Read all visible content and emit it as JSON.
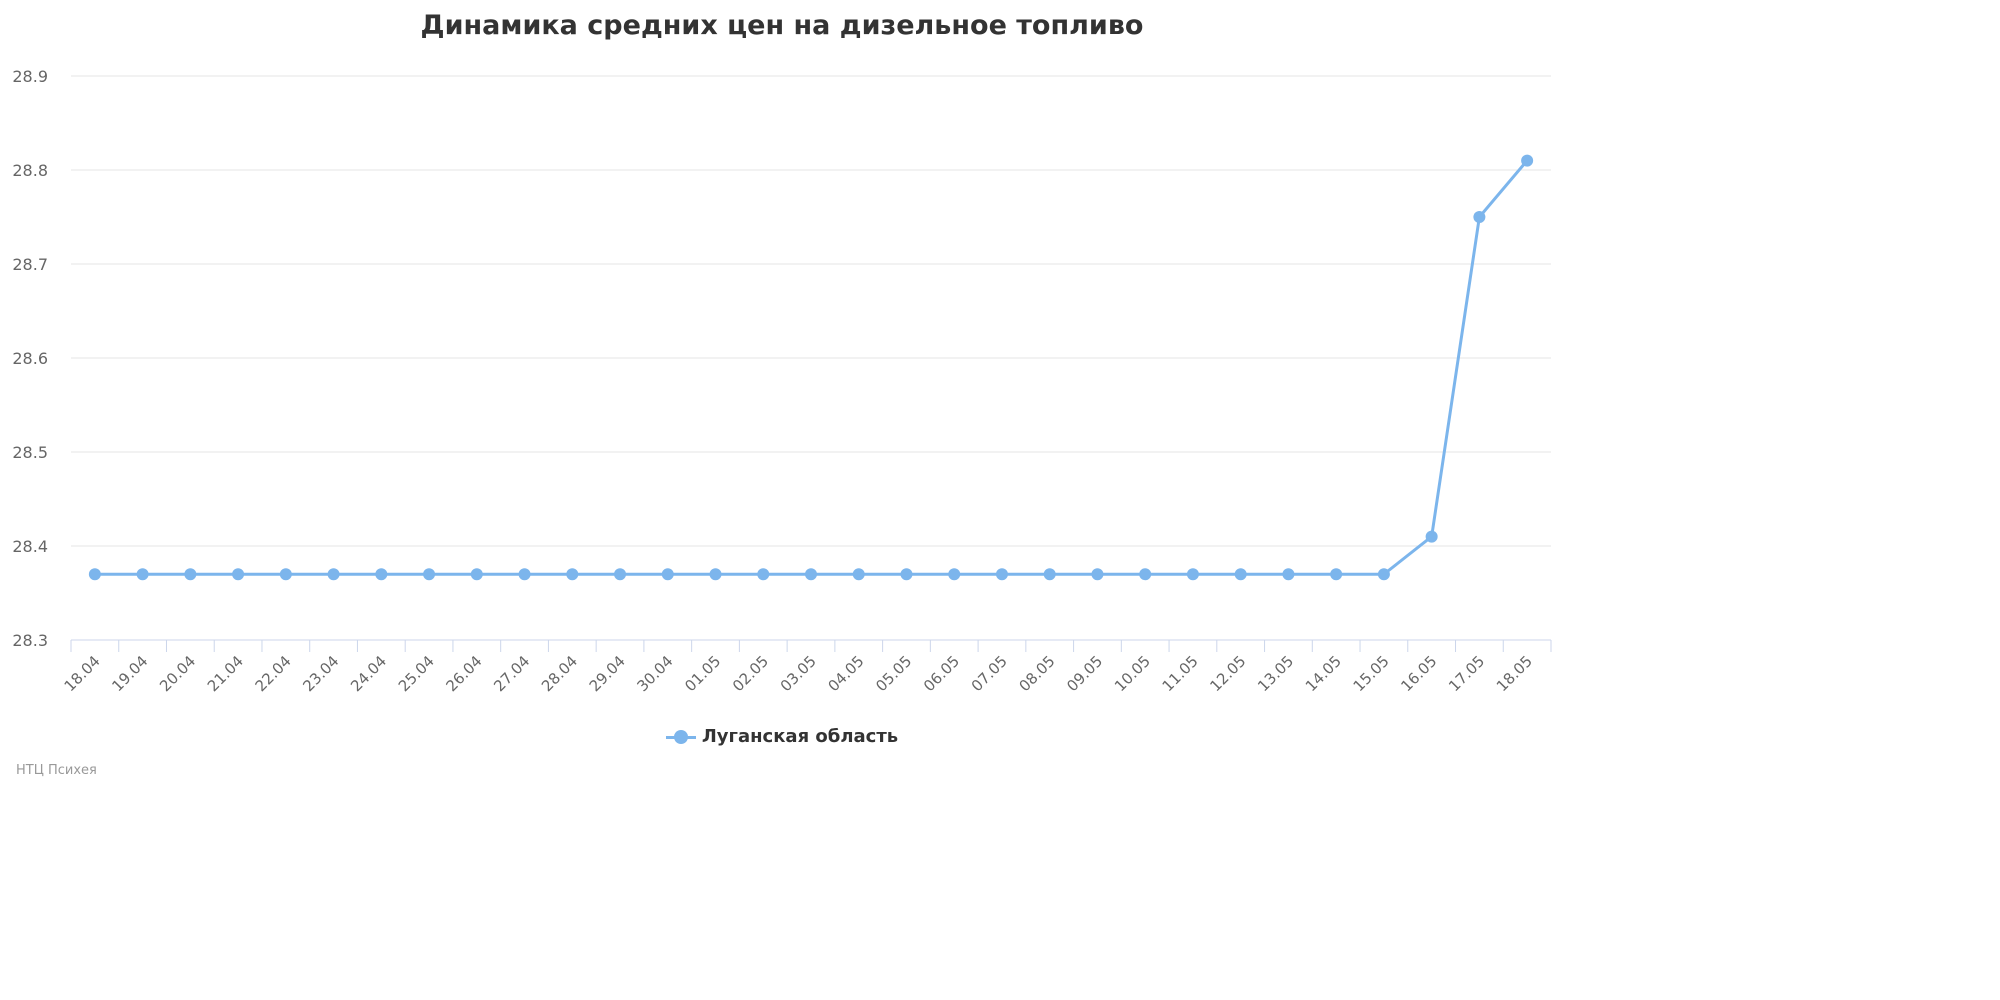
{
  "chart_data": {
    "type": "line",
    "title": "Динамика средних цен на дизельное топливо",
    "xlabel": "",
    "ylabel": "",
    "categories": [
      "18.04",
      "19.04",
      "20.04",
      "21.04",
      "22.04",
      "23.04",
      "24.04",
      "25.04",
      "26.04",
      "27.04",
      "28.04",
      "29.04",
      "30.04",
      "01.05",
      "02.05",
      "03.05",
      "04.05",
      "05.05",
      "06.05",
      "07.05",
      "08.05",
      "09.05",
      "10.05",
      "11.05",
      "12.05",
      "13.05",
      "14.05",
      "15.05",
      "16.05",
      "17.05",
      "18.05"
    ],
    "series": [
      {
        "name": "Луганская область",
        "color": "#7cb5ec",
        "values": [
          28.37,
          28.37,
          28.37,
          28.37,
          28.37,
          28.37,
          28.37,
          28.37,
          28.37,
          28.37,
          28.37,
          28.37,
          28.37,
          28.37,
          28.37,
          28.37,
          28.37,
          28.37,
          28.37,
          28.37,
          28.37,
          28.37,
          28.37,
          28.37,
          28.37,
          28.37,
          28.37,
          28.37,
          28.41,
          28.75,
          28.81
        ]
      }
    ],
    "ylim": [
      28.3,
      28.9
    ],
    "yticks": [
      "28.3",
      "28.4",
      "28.5",
      "28.6",
      "28.7",
      "28.8",
      "28.9"
    ],
    "grid": true,
    "legend": "bottom-center"
  },
  "credits": "НТЦ Психея"
}
